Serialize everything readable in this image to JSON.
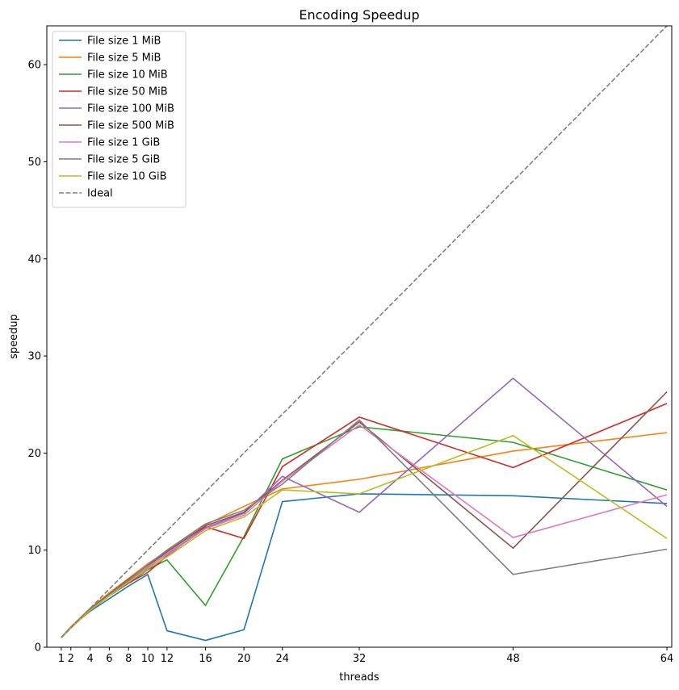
{
  "chart_data": {
    "type": "line",
    "title": "Encoding Speedup",
    "xlabel": "threads",
    "ylabel": "speedup",
    "xlim": [
      -0.5,
      64.5
    ],
    "ylim": [
      0,
      64
    ],
    "xticks": [
      1,
      2,
      4,
      6,
      8,
      10,
      12,
      16,
      20,
      24,
      32,
      48,
      64
    ],
    "yticks": [
      0,
      10,
      20,
      30,
      40,
      50,
      60
    ],
    "grid": false,
    "legend_position": "top-left",
    "x": [
      1,
      2,
      4,
      6,
      8,
      10,
      12,
      16,
      20,
      24,
      32,
      48,
      64
    ],
    "series": [
      {
        "name": "File size 1 MiB",
        "color": "#1f77b4",
        "dash": "solid",
        "values": [
          1.0,
          2.1,
          3.7,
          5.0,
          6.3,
          7.5,
          1.7,
          0.7,
          1.8,
          15.0,
          15.8,
          15.6,
          14.8
        ]
      },
      {
        "name": "File size 5 MiB",
        "color": "#ff7f0e",
        "dash": "solid",
        "values": [
          1.0,
          2.1,
          4.0,
          5.6,
          7.1,
          8.6,
          9.9,
          12.6,
          14.5,
          16.3,
          17.3,
          20.2,
          22.1
        ]
      },
      {
        "name": "File size 10 MiB",
        "color": "#2ca02c",
        "dash": "solid",
        "values": [
          1.0,
          2.0,
          3.8,
          5.3,
          6.6,
          8.0,
          9.0,
          4.3,
          11.4,
          19.4,
          22.7,
          21.1,
          16.2
        ]
      },
      {
        "name": "File size 50 MiB",
        "color": "#d62728",
        "dash": "solid",
        "values": [
          1.0,
          2.0,
          3.8,
          5.3,
          6.6,
          7.7,
          9.4,
          12.4,
          11.2,
          18.6,
          23.7,
          18.5,
          25.1
        ]
      },
      {
        "name": "File size 100 MiB",
        "color": "#9467bd",
        "dash": "solid",
        "values": [
          1.0,
          2.0,
          3.8,
          5.4,
          6.8,
          8.2,
          9.6,
          12.3,
          13.8,
          17.6,
          13.9,
          27.7,
          14.5
        ]
      },
      {
        "name": "File size 500 MiB",
        "color": "#8c564b",
        "dash": "solid",
        "values": [
          1.0,
          2.0,
          3.9,
          5.5,
          7.0,
          8.4,
          9.8,
          12.5,
          13.9,
          17.2,
          23.2,
          10.2,
          26.3
        ]
      },
      {
        "name": "File size 1 GiB",
        "color": "#e377c2",
        "dash": "solid",
        "values": [
          1.0,
          2.0,
          3.8,
          5.4,
          6.9,
          8.3,
          9.5,
          12.2,
          13.6,
          17.1,
          22.9,
          11.3,
          15.7
        ]
      },
      {
        "name": "File size 5 GiB",
        "color": "#7f7f7f",
        "dash": "solid",
        "values": [
          1.0,
          2.0,
          3.8,
          5.4,
          6.9,
          8.5,
          10.0,
          12.7,
          14.1,
          16.8,
          23.4,
          7.5,
          10.1
        ]
      },
      {
        "name": "File size 10 GiB",
        "color": "#bcbd22",
        "dash": "solid",
        "values": [
          1.0,
          2.0,
          3.8,
          5.3,
          6.7,
          8.1,
          9.3,
          12.0,
          13.4,
          16.2,
          15.8,
          21.8,
          11.2
        ]
      },
      {
        "name": "Ideal",
        "color": "#7f7f7f",
        "dash": "dashed",
        "values": [
          1,
          2,
          4,
          6,
          8,
          10,
          12,
          16,
          20,
          24,
          32,
          48,
          64
        ]
      }
    ]
  }
}
